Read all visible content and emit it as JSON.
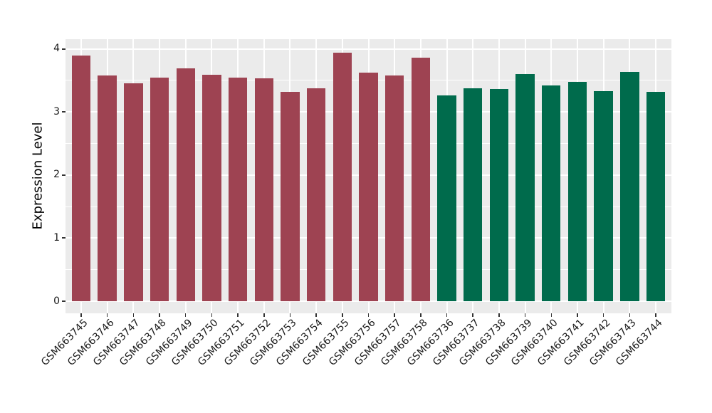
{
  "chart_data": {
    "type": "bar",
    "title": "",
    "xlabel": "",
    "ylabel": "Expression Level",
    "ylim": [
      0,
      4.14
    ],
    "yticks": [
      0,
      1,
      2,
      3,
      4
    ],
    "yminorticks": [
      0.5,
      1.5,
      2.5,
      3.5
    ],
    "grid": "white major+minor horizontal lines and vertical category lines on gray panel",
    "legend_position": "none",
    "panel_background": "#EBEBEB",
    "grid_color": "#FFFFFF",
    "tick_mark_color": "#333333",
    "tick_label_color": "#1A1A1A",
    "group_colors": {
      "group1": "#9E4352",
      "group2": "#006B4C"
    },
    "bars": [
      {
        "label": "GSM663745",
        "value": 3.9,
        "group": "group1"
      },
      {
        "label": "GSM663746",
        "value": 3.58,
        "group": "group1"
      },
      {
        "label": "GSM663747",
        "value": 3.45,
        "group": "group1"
      },
      {
        "label": "GSM663748",
        "value": 3.54,
        "group": "group1"
      },
      {
        "label": "GSM663749",
        "value": 3.69,
        "group": "group1"
      },
      {
        "label": "GSM663750",
        "value": 3.59,
        "group": "group1"
      },
      {
        "label": "GSM663751",
        "value": 3.55,
        "group": "group1"
      },
      {
        "label": "GSM663752",
        "value": 3.53,
        "group": "group1"
      },
      {
        "label": "GSM663753",
        "value": 3.32,
        "group": "group1"
      },
      {
        "label": "GSM663754",
        "value": 3.38,
        "group": "group1"
      },
      {
        "label": "GSM663755",
        "value": 3.94,
        "group": "group1"
      },
      {
        "label": "GSM663756",
        "value": 3.62,
        "group": "group1"
      },
      {
        "label": "GSM663757",
        "value": 3.58,
        "group": "group1"
      },
      {
        "label": "GSM663758",
        "value": 3.86,
        "group": "group1"
      },
      {
        "label": "GSM663736",
        "value": 3.26,
        "group": "group2"
      },
      {
        "label": "GSM663737",
        "value": 3.38,
        "group": "group2"
      },
      {
        "label": "GSM663738",
        "value": 3.36,
        "group": "group2"
      },
      {
        "label": "GSM663739",
        "value": 3.6,
        "group": "group2"
      },
      {
        "label": "GSM663740",
        "value": 3.42,
        "group": "group2"
      },
      {
        "label": "GSM663741",
        "value": 3.48,
        "group": "group2"
      },
      {
        "label": "GSM663742",
        "value": 3.33,
        "group": "group2"
      },
      {
        "label": "GSM663743",
        "value": 3.64,
        "group": "group2"
      },
      {
        "label": "GSM663744",
        "value": 3.32,
        "group": "group2"
      }
    ]
  }
}
